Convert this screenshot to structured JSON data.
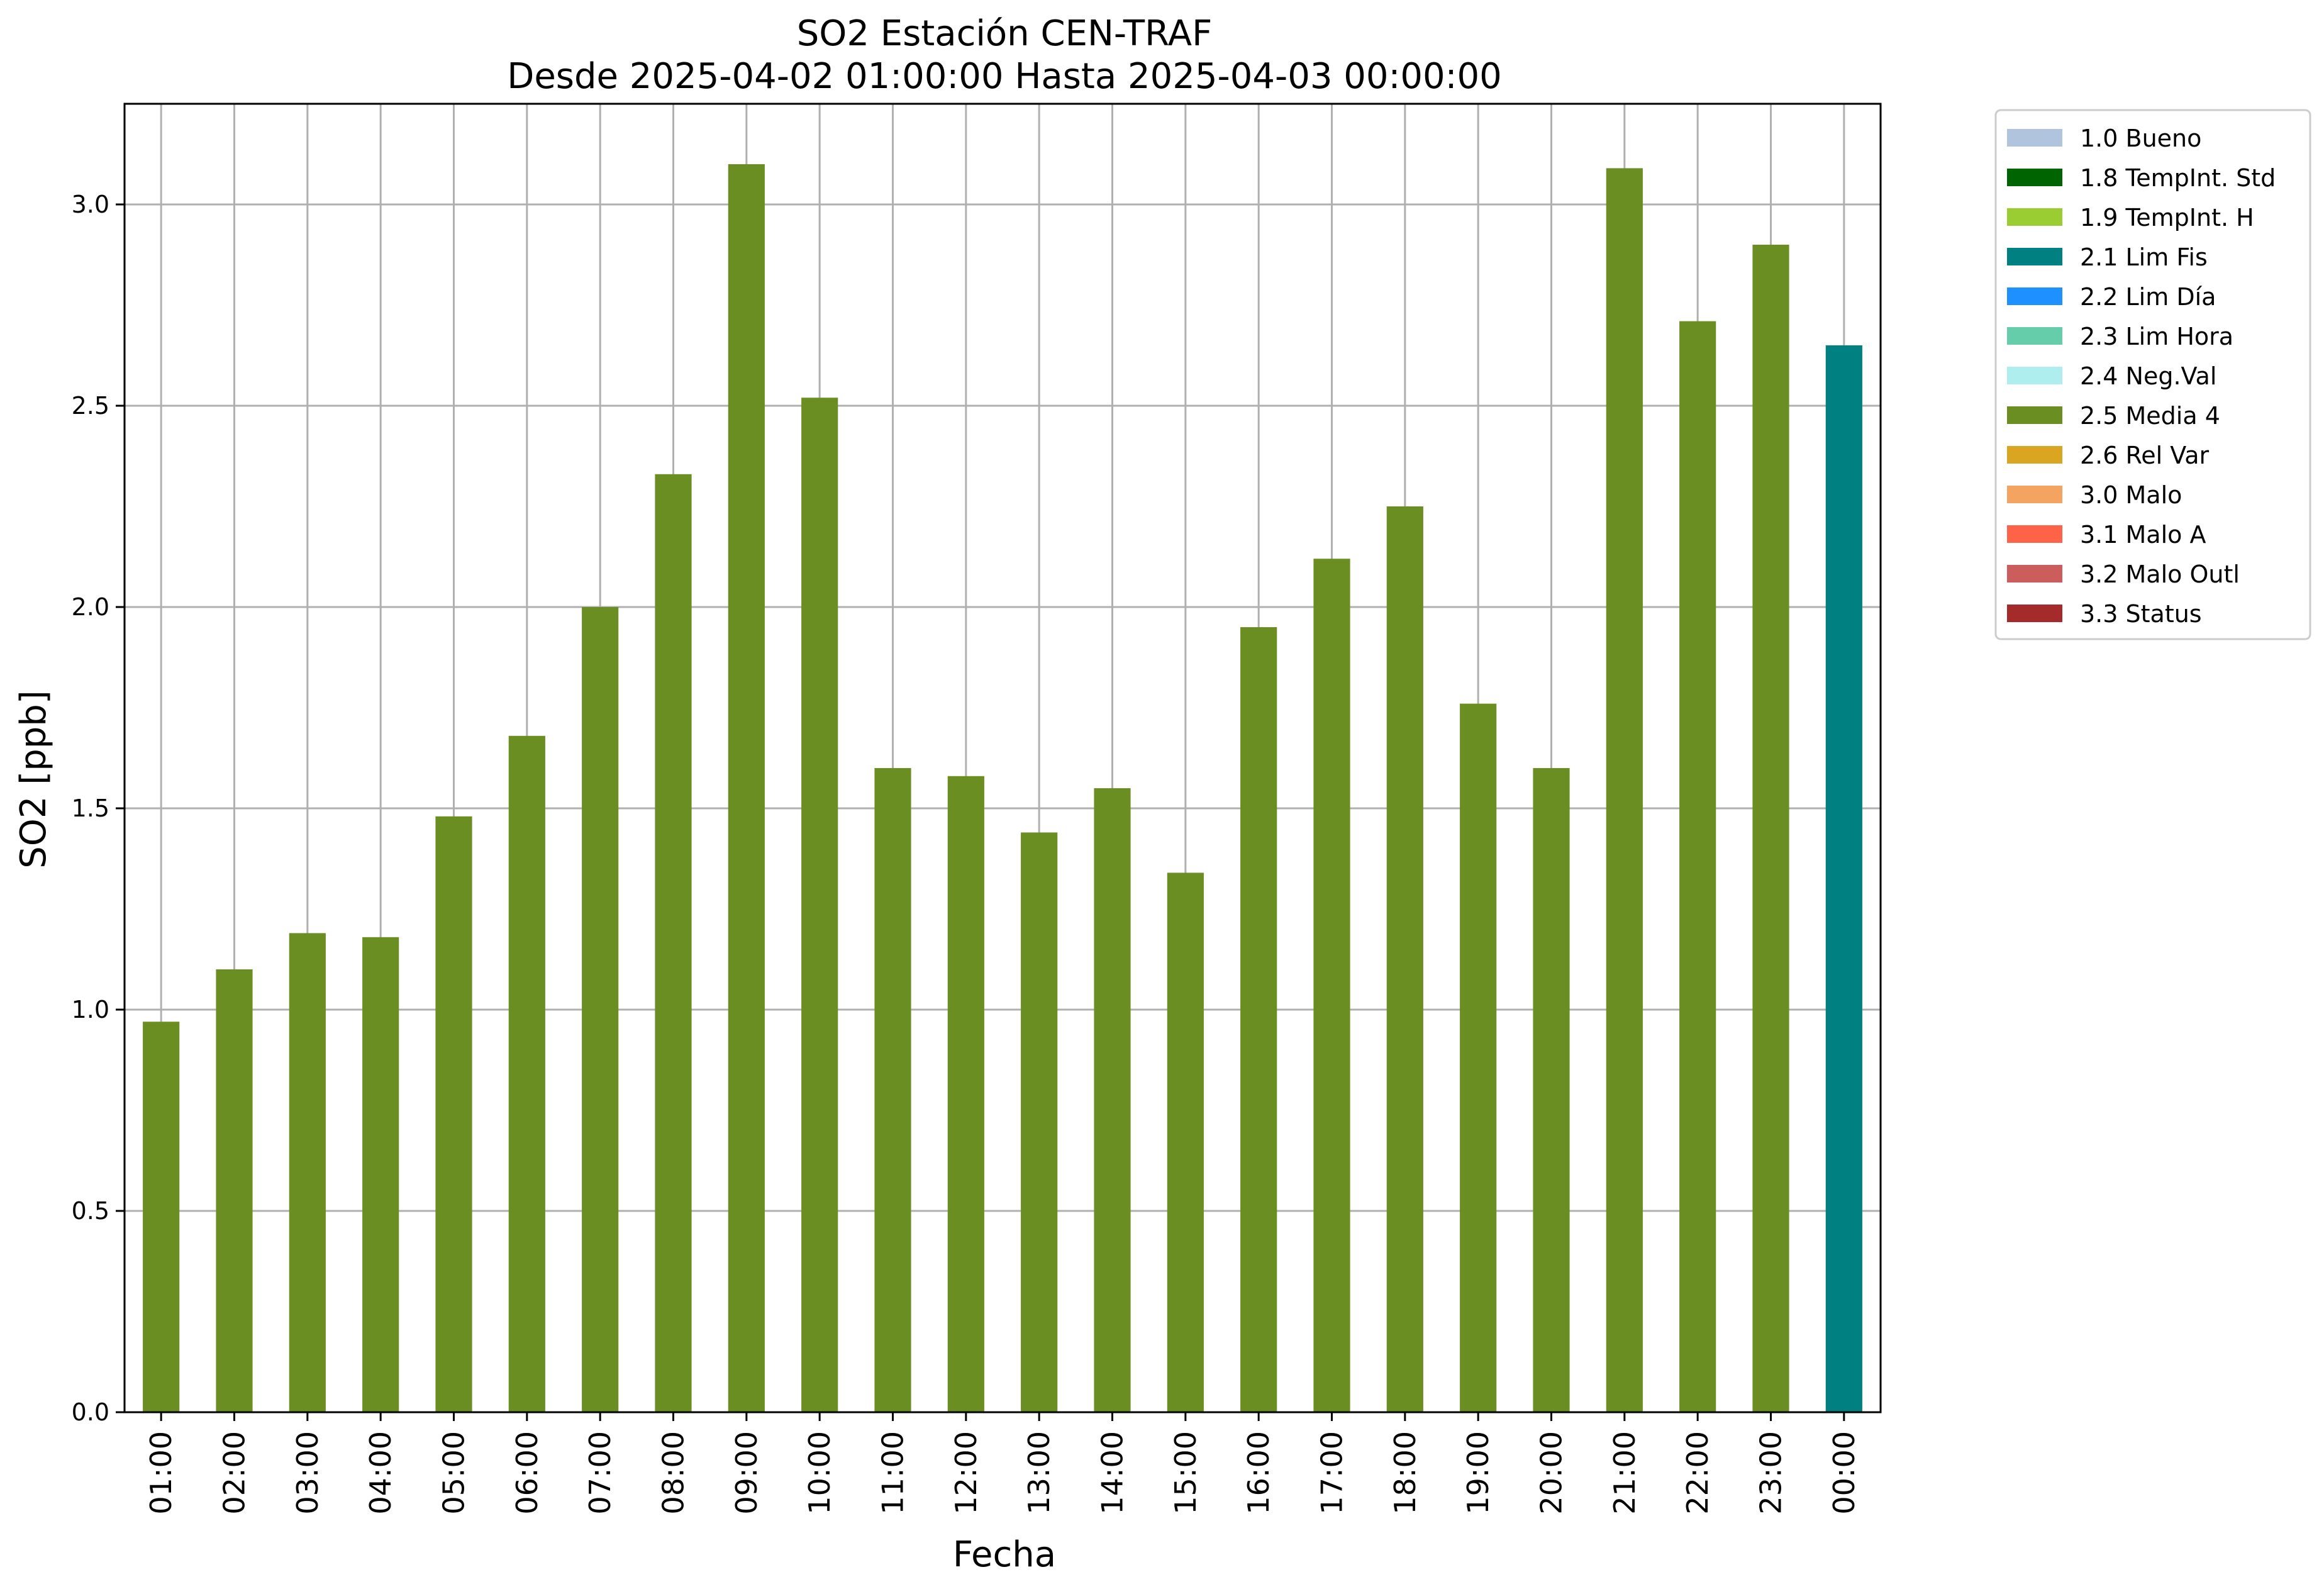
{
  "chart_data": {
    "type": "bar",
    "title": "SO2 Estación CEN-TRAF",
    "subtitle": "Desde 2025-04-02 01:00:00 Hasta 2025-04-03 00:00:00",
    "xlabel": "Fecha",
    "ylabel": "SO2 [ppb]",
    "ylim": [
      0,
      3.25
    ],
    "yticks": [
      "0.0",
      "0.5",
      "1.0",
      "1.5",
      "2.0",
      "2.5",
      "3.0"
    ],
    "grid": true,
    "legend_position": "outside-top-right",
    "categories": [
      "01:00",
      "02:00",
      "03:00",
      "04:00",
      "05:00",
      "06:00",
      "07:00",
      "08:00",
      "09:00",
      "10:00",
      "11:00",
      "12:00",
      "13:00",
      "14:00",
      "15:00",
      "16:00",
      "17:00",
      "18:00",
      "19:00",
      "20:00",
      "21:00",
      "22:00",
      "23:00",
      "00:00"
    ],
    "values": [
      0.97,
      1.1,
      1.19,
      1.18,
      1.48,
      1.68,
      2.0,
      2.33,
      3.1,
      2.52,
      1.6,
      1.58,
      1.44,
      1.55,
      1.34,
      1.95,
      2.12,
      2.25,
      1.76,
      1.6,
      3.09,
      2.71,
      2.9,
      2.65
    ],
    "bar_flags": [
      "2.5 Media 4",
      "2.5 Media 4",
      "2.5 Media 4",
      "2.5 Media 4",
      "2.5 Media 4",
      "2.5 Media 4",
      "2.5 Media 4",
      "2.5 Media 4",
      "2.5 Media 4",
      "2.5 Media 4",
      "2.5 Media 4",
      "2.5 Media 4",
      "2.5 Media 4",
      "2.5 Media 4",
      "2.5 Media 4",
      "2.5 Media 4",
      "2.5 Media 4",
      "2.5 Media 4",
      "2.5 Media 4",
      "2.5 Media 4",
      "2.5 Media 4",
      "2.5 Media 4",
      "2.5 Media 4",
      "2.1 Lim Fis"
    ],
    "legend": [
      {
        "label": "1.0 Bueno",
        "color": "#b0c4de"
      },
      {
        "label": "1.8 TempInt. Std",
        "color": "#006400"
      },
      {
        "label": "1.9 TempInt. H",
        "color": "#9acd32"
      },
      {
        "label": "2.1 Lim Fis",
        "color": "#008080"
      },
      {
        "label": "2.2 Lim Día",
        "color": "#1e90ff"
      },
      {
        "label": "2.3 Lim Hora",
        "color": "#66cdaa"
      },
      {
        "label": "2.4 Neg.Val",
        "color": "#afeeee"
      },
      {
        "label": "2.5 Media 4",
        "color": "#6b8e23"
      },
      {
        "label": "2.6 Rel Var",
        "color": "#daa520"
      },
      {
        "label": "3.0 Malo",
        "color": "#f4a460"
      },
      {
        "label": "3.1 Malo A",
        "color": "#ff6347"
      },
      {
        "label": "3.2 Malo Outl",
        "color": "#cd5c5c"
      },
      {
        "label": "3.3 Status",
        "color": "#a52a2a"
      }
    ]
  }
}
